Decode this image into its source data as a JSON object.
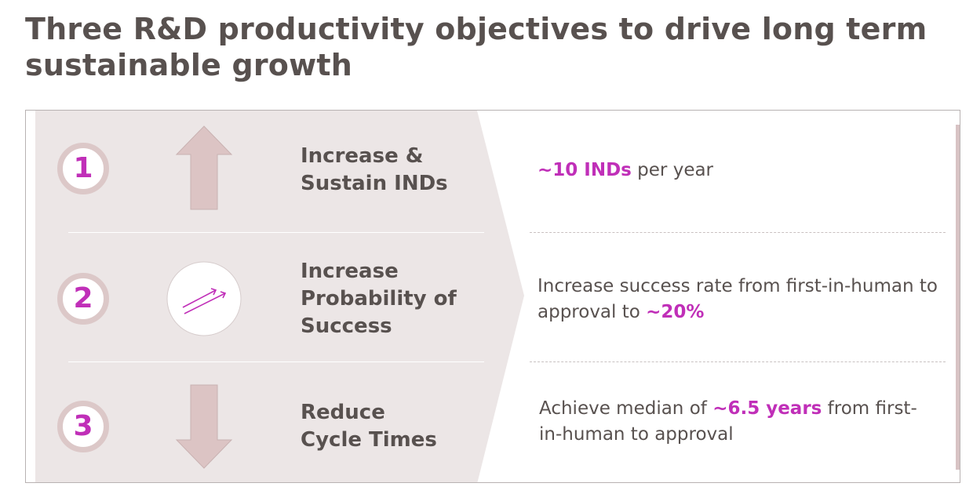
{
  "title": "Three R&D productivity objectives to drive long term sustainable growth",
  "colors": {
    "accent": "#c02fb8",
    "panel": "#ece6e6",
    "circle_ring": "#dcc8c8",
    "arrow": "#dcc4c4"
  },
  "objectives": [
    {
      "number": "1",
      "icon": "arrow-up-icon",
      "label_line1": "Increase &",
      "label_line2": "Sustain INDs",
      "target_highlight": "~10 INDs",
      "target_rest": " per year"
    },
    {
      "number": "2",
      "icon": "trend-up-arrows-icon",
      "label_line1": "Increase",
      "label_line2": "Probability of",
      "label_line3": "Success",
      "target_line1": "Increase success rate from first-in-human to",
      "target_line2_pre": "approval to ",
      "target_highlight": "~20%"
    },
    {
      "number": "3",
      "icon": "arrow-down-icon",
      "label_line1": "Reduce",
      "label_line2": "Cycle Times",
      "target_pre": "Achieve median of ",
      "target_highlight": "~6.5 years",
      "target_post": " from first-",
      "target_line2": "in-human to approval"
    }
  ]
}
